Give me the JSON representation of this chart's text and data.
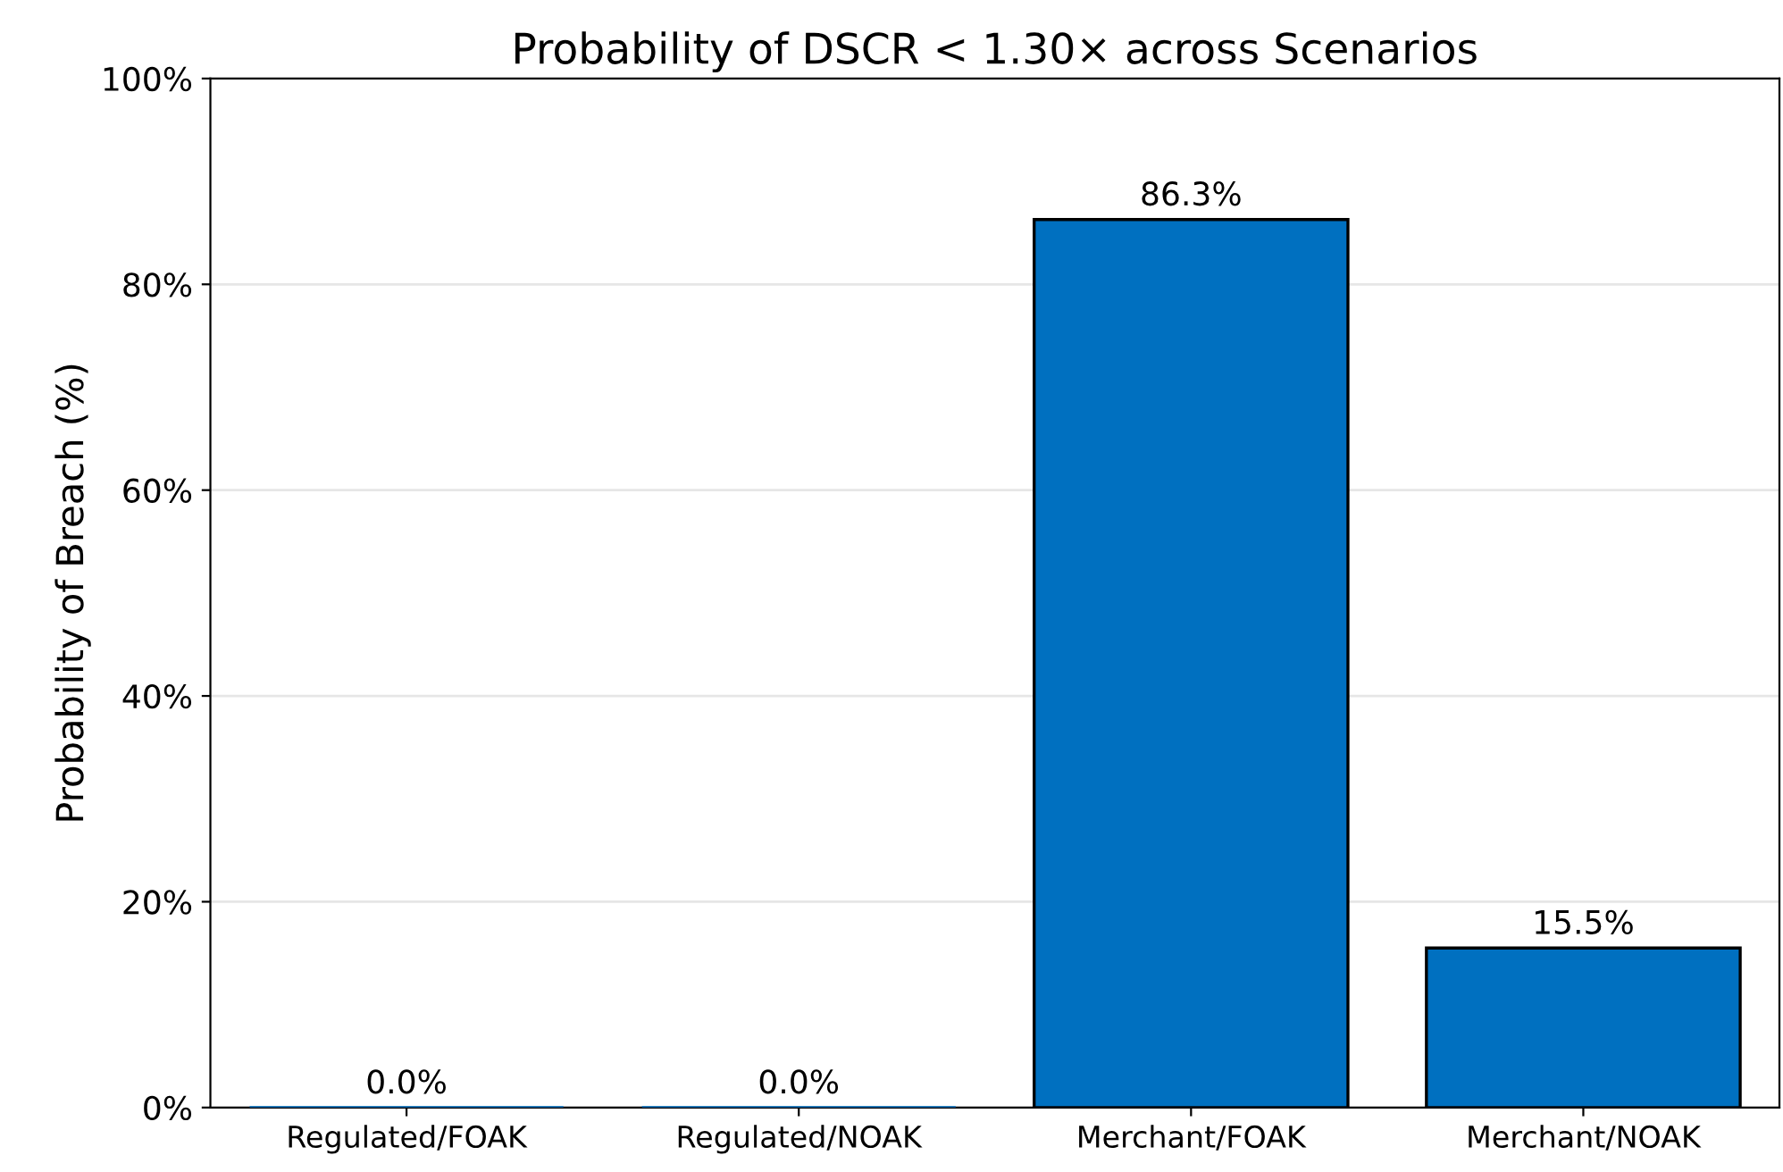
{
  "chart_data": {
    "type": "bar",
    "title": "Probability of DSCR < 1.30× across Scenarios",
    "ylabel": "Probability of Breach (%)",
    "categories": [
      "Regulated/FOAK",
      "Regulated/NOAK",
      "Merchant/FOAK",
      "Merchant/NOAK"
    ],
    "values": [
      0.0,
      0.0,
      86.3,
      15.5
    ],
    "color": "#0070c0",
    "value_labels": [
      "0.0%",
      "0.0%",
      "86.3%",
      "15.5%"
    ],
    "ylim": [
      0,
      100
    ],
    "yticks": [
      {
        "value": 0,
        "label": "0%"
      },
      {
        "value": 20,
        "label": "20%"
      },
      {
        "value": 40,
        "label": "40%"
      },
      {
        "value": 60,
        "label": "60%"
      },
      {
        "value": 80,
        "label": "80%"
      },
      {
        "value": 100,
        "label": "100%"
      }
    ],
    "grid": "y"
  }
}
